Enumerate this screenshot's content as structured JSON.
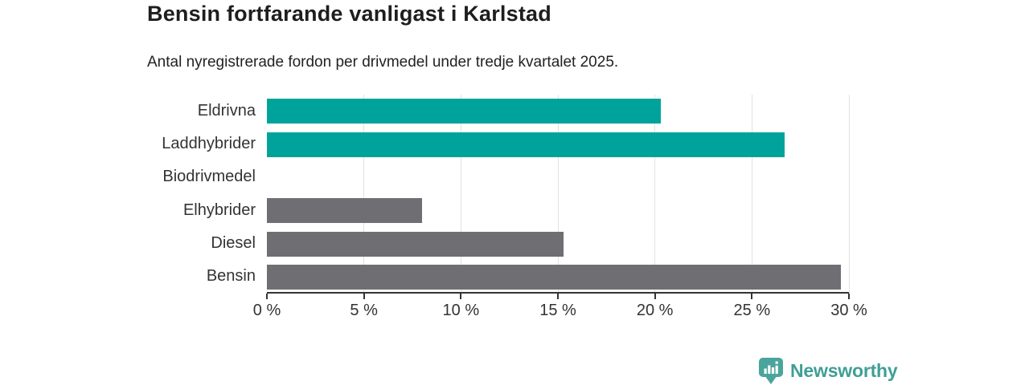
{
  "header": {
    "title": "Bensin fortfarande vanligast i Karlstad",
    "subtitle": "Antal nyregistrerade fordon per drivmedel under tredje kvartalet 2025."
  },
  "chart_data": {
    "type": "bar",
    "orientation": "horizontal",
    "title": "Bensin fortfarande vanligast i Karlstad",
    "subtitle": "Antal nyregistrerade fordon per drivmedel under tredje kvartalet 2025.",
    "categories": [
      "Eldrivna",
      "Laddhybrider",
      "Biodrivmedel",
      "Elhybrider",
      "Diesel",
      "Bensin"
    ],
    "values": [
      20.3,
      26.7,
      0,
      8.0,
      15.3,
      29.6
    ],
    "unit": "%",
    "bar_colors": [
      "#00a39b",
      "#00a39b",
      "#6e6e73",
      "#6e6e73",
      "#6e6e73",
      "#6e6e73"
    ],
    "xlim": [
      0,
      30
    ],
    "x_ticks": [
      0,
      5,
      10,
      15,
      20,
      25,
      30
    ],
    "x_tick_labels": [
      "0 %",
      "5 %",
      "10 %",
      "15 %",
      "20 %",
      "25 %",
      "30 %"
    ],
    "grid": "vertical-on",
    "legend": "none"
  },
  "colors": {
    "accent_teal": "#00a39b",
    "neutral_gray": "#6e6e73",
    "axis": "#333333",
    "gridline": "#e2e2e2",
    "brand_teal": "#3f9e97"
  },
  "footer": {
    "brand": "Newsworthy",
    "brand_color": "#3f9e97",
    "logo_icon": "bar-chart-speech-bubble-icon"
  }
}
